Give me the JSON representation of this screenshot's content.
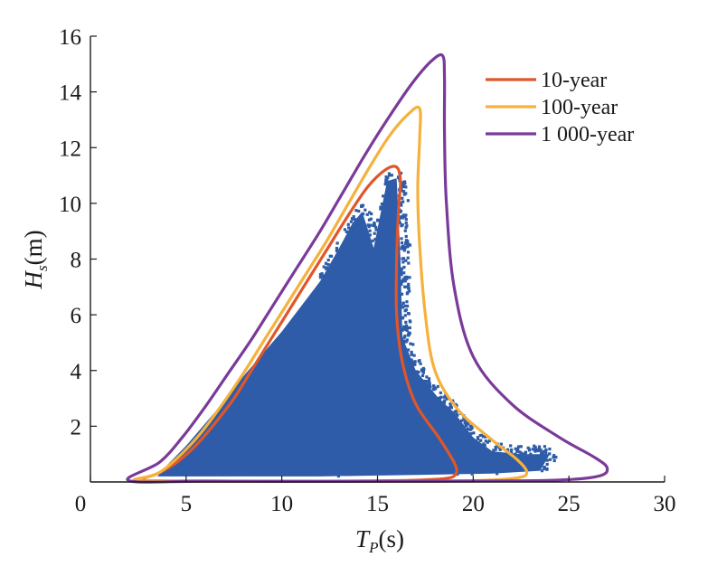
{
  "chart_data": {
    "type": "scatter",
    "title": "",
    "xlabel": {
      "main": "T",
      "subscript": "P",
      "unit": "(s)"
    },
    "ylabel": {
      "main": "H",
      "subscript": "s",
      "unit": "(m)"
    },
    "xlim": [
      0,
      30
    ],
    "ylim": [
      0,
      16
    ],
    "x_ticks": [
      0,
      5,
      10,
      15,
      20,
      25,
      30
    ],
    "y_ticks": [
      2,
      4,
      6,
      8,
      10,
      12,
      14,
      16
    ],
    "x_tick_labels": [
      "0",
      "5",
      "10",
      "15",
      "20",
      "25",
      "30"
    ],
    "y_tick_labels": [
      "2",
      "4",
      "6",
      "8",
      "10",
      "12",
      "14",
      "16"
    ],
    "grid": false,
    "legend_position": "top-right",
    "scatter": {
      "name": "observations",
      "color": "#2e5ca8",
      "description_points": "dense cloud of wave observations",
      "envelope": [
        [
          3.5,
          0.2
        ],
        [
          4,
          0.6
        ],
        [
          5,
          1.3
        ],
        [
          6,
          2.1
        ],
        [
          7,
          2.9
        ],
        [
          8,
          3.8
        ],
        [
          9,
          4.6
        ],
        [
          10,
          5.4
        ],
        [
          11,
          6.3
        ],
        [
          12,
          7.2
        ],
        [
          13,
          8.4
        ],
        [
          13.7,
          9.3
        ],
        [
          14.2,
          9.7
        ],
        [
          14.8,
          8.4
        ],
        [
          15.5,
          10.8
        ],
        [
          16.0,
          10.9
        ],
        [
          16.2,
          8.0
        ],
        [
          16.3,
          5.2
        ],
        [
          17.0,
          4.0
        ],
        [
          18.2,
          3.0
        ],
        [
          19.0,
          2.5
        ],
        [
          20.0,
          1.6
        ],
        [
          21.0,
          1.1
        ],
        [
          22.5,
          1.0
        ],
        [
          24.0,
          1.0
        ],
        [
          23.5,
          0.4
        ],
        [
          21.0,
          0.3
        ],
        [
          17.0,
          0.25
        ],
        [
          12.0,
          0.2
        ],
        [
          8.0,
          0.2
        ],
        [
          5.0,
          0.2
        ]
      ]
    },
    "series": [
      {
        "name": "10-year",
        "color": "#e0562a",
        "points": [
          [
            16.0,
            11.3
          ],
          [
            15.4,
            11.2
          ],
          [
            14.5,
            10.6
          ],
          [
            13.5,
            9.6
          ],
          [
            12.5,
            8.5
          ],
          [
            11.5,
            7.4
          ],
          [
            10.5,
            6.3
          ],
          [
            9.5,
            5.2
          ],
          [
            8.5,
            4.1
          ],
          [
            7.5,
            3.0
          ],
          [
            6.5,
            2.1
          ],
          [
            5.5,
            1.3
          ],
          [
            4.5,
            0.7
          ],
          [
            3.5,
            0.3
          ],
          [
            2.6,
            0.07
          ],
          [
            4,
            0.04
          ],
          [
            8,
            0.03
          ],
          [
            12,
            0.03
          ],
          [
            16,
            0.05
          ],
          [
            18.5,
            0.12
          ],
          [
            19.1,
            0.3
          ],
          [
            19.0,
            0.7
          ],
          [
            18.2,
            1.6
          ],
          [
            17.0,
            2.8
          ],
          [
            16.3,
            4.3
          ],
          [
            16.0,
            6.0
          ],
          [
            16.0,
            8.0
          ],
          [
            16.1,
            9.8
          ],
          [
            16.2,
            10.8
          ],
          [
            16.0,
            11.3
          ]
        ]
      },
      {
        "name": "100-year",
        "color": "#f5b13c",
        "points": [
          [
            17.2,
            13.4
          ],
          [
            16.6,
            13.2
          ],
          [
            15.6,
            12.4
          ],
          [
            14.5,
            11.2
          ],
          [
            13.4,
            9.9
          ],
          [
            12.3,
            8.6
          ],
          [
            11.2,
            7.4
          ],
          [
            10.1,
            6.2
          ],
          [
            9.0,
            5.0
          ],
          [
            7.9,
            3.8
          ],
          [
            6.8,
            2.7
          ],
          [
            5.7,
            1.7
          ],
          [
            4.6,
            0.9
          ],
          [
            3.5,
            0.3
          ],
          [
            2.3,
            0.06
          ],
          [
            5,
            0.03
          ],
          [
            10,
            0.02
          ],
          [
            15,
            0.03
          ],
          [
            20,
            0.05
          ],
          [
            22.3,
            0.15
          ],
          [
            22.8,
            0.35
          ],
          [
            22.3,
            0.8
          ],
          [
            21.0,
            1.5
          ],
          [
            19.2,
            2.6
          ],
          [
            18.0,
            4.0
          ],
          [
            17.5,
            6.0
          ],
          [
            17.2,
            8.5
          ],
          [
            17.1,
            10.5
          ],
          [
            17.2,
            12.3
          ],
          [
            17.2,
            13.4
          ]
        ]
      },
      {
        "name": "1 000-year",
        "color": "#7a3a9a",
        "points": [
          [
            18.4,
            15.3
          ],
          [
            17.8,
            15.1
          ],
          [
            16.8,
            14.3
          ],
          [
            15.6,
            13.1
          ],
          [
            14.4,
            11.8
          ],
          [
            13.2,
            10.4
          ],
          [
            12.0,
            9.0
          ],
          [
            10.8,
            7.7
          ],
          [
            9.6,
            6.4
          ],
          [
            8.4,
            5.1
          ],
          [
            7.2,
            3.9
          ],
          [
            6.0,
            2.7
          ],
          [
            4.8,
            1.6
          ],
          [
            3.6,
            0.7
          ],
          [
            2.0,
            0.05
          ],
          [
            6,
            0.03
          ],
          [
            12,
            0.02
          ],
          [
            18,
            0.03
          ],
          [
            24,
            0.06
          ],
          [
            26.5,
            0.2
          ],
          [
            27.0,
            0.5
          ],
          [
            26.3,
            0.9
          ],
          [
            24.5,
            1.6
          ],
          [
            22.0,
            2.8
          ],
          [
            20.0,
            4.5
          ],
          [
            19.0,
            7.0
          ],
          [
            18.6,
            10.0
          ],
          [
            18.5,
            12.5
          ],
          [
            18.5,
            14.5
          ],
          [
            18.4,
            15.3
          ]
        ]
      }
    ]
  }
}
